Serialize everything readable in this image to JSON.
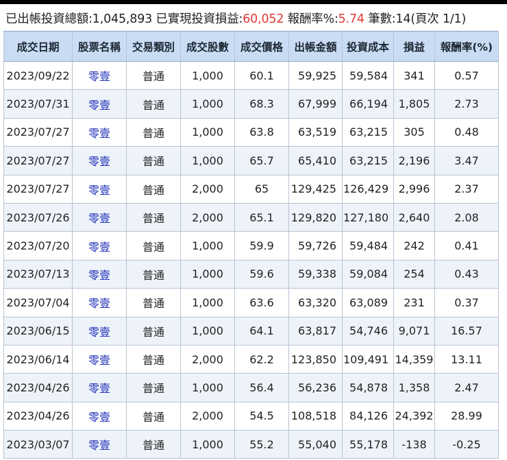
{
  "summary": {
    "label_total": "已出帳投資總額:",
    "total": "1,045,893",
    "label_realized": " 已實現投資損益:",
    "realized": "60,052",
    "label_rate": " 報酬率%:",
    "rate": "5.74",
    "label_count": " 筆數:14(頁次 1/1)"
  },
  "table": {
    "headers": [
      "成交日期",
      "股票名稱",
      "交易類別",
      "成交股數",
      "成交價格",
      "出帳金額",
      "投資成本",
      "損益",
      "報酬率(%)"
    ],
    "rows": [
      [
        "2023/09/22",
        "零壹",
        "普通",
        "1,000",
        "60.1",
        "59,925",
        "59,584",
        "341",
        "0.57"
      ],
      [
        "2023/07/31",
        "零壹",
        "普通",
        "1,000",
        "68.3",
        "67,999",
        "66,194",
        "1,805",
        "2.73"
      ],
      [
        "2023/07/27",
        "零壹",
        "普通",
        "1,000",
        "63.8",
        "63,519",
        "63,215",
        "305",
        "0.48"
      ],
      [
        "2023/07/27",
        "零壹",
        "普通",
        "1,000",
        "65.7",
        "65,410",
        "63,215",
        "2,196",
        "3.47"
      ],
      [
        "2023/07/27",
        "零壹",
        "普通",
        "2,000",
        "65",
        "129,425",
        "126,429",
        "2,996",
        "2.37"
      ],
      [
        "2023/07/26",
        "零壹",
        "普通",
        "2,000",
        "65.1",
        "129,820",
        "127,180",
        "2,640",
        "2.08"
      ],
      [
        "2023/07/20",
        "零壹",
        "普通",
        "1,000",
        "59.9",
        "59,726",
        "59,484",
        "242",
        "0.41"
      ],
      [
        "2023/07/13",
        "零壹",
        "普通",
        "1,000",
        "59.6",
        "59,338",
        "59,084",
        "254",
        "0.43"
      ],
      [
        "2023/07/04",
        "零壹",
        "普通",
        "1,000",
        "63.6",
        "63,320",
        "63,089",
        "231",
        "0.37"
      ],
      [
        "2023/06/15",
        "零壹",
        "普通",
        "1,000",
        "64.1",
        "63,817",
        "54,746",
        "9,071",
        "16.57"
      ],
      [
        "2023/06/14",
        "零壹",
        "普通",
        "2,000",
        "62.2",
        "123,850",
        "109,491",
        "14,359",
        "13.11"
      ],
      [
        "2023/04/26",
        "零壹",
        "普通",
        "1,000",
        "56.4",
        "56,236",
        "54,878",
        "1,358",
        "2.47"
      ],
      [
        "2023/04/26",
        "零壹",
        "普通",
        "2,000",
        "54.5",
        "108,518",
        "84,126",
        "24,392",
        "28.99"
      ],
      [
        "2023/03/07",
        "零壹",
        "普通",
        "1,000",
        "55.2",
        "55,040",
        "55,178",
        "-138",
        "-0.25"
      ]
    ]
  },
  "colors": {
    "header_bg": "#c9dcf4",
    "highlight": "#e53935",
    "link": "#2030b8"
  }
}
